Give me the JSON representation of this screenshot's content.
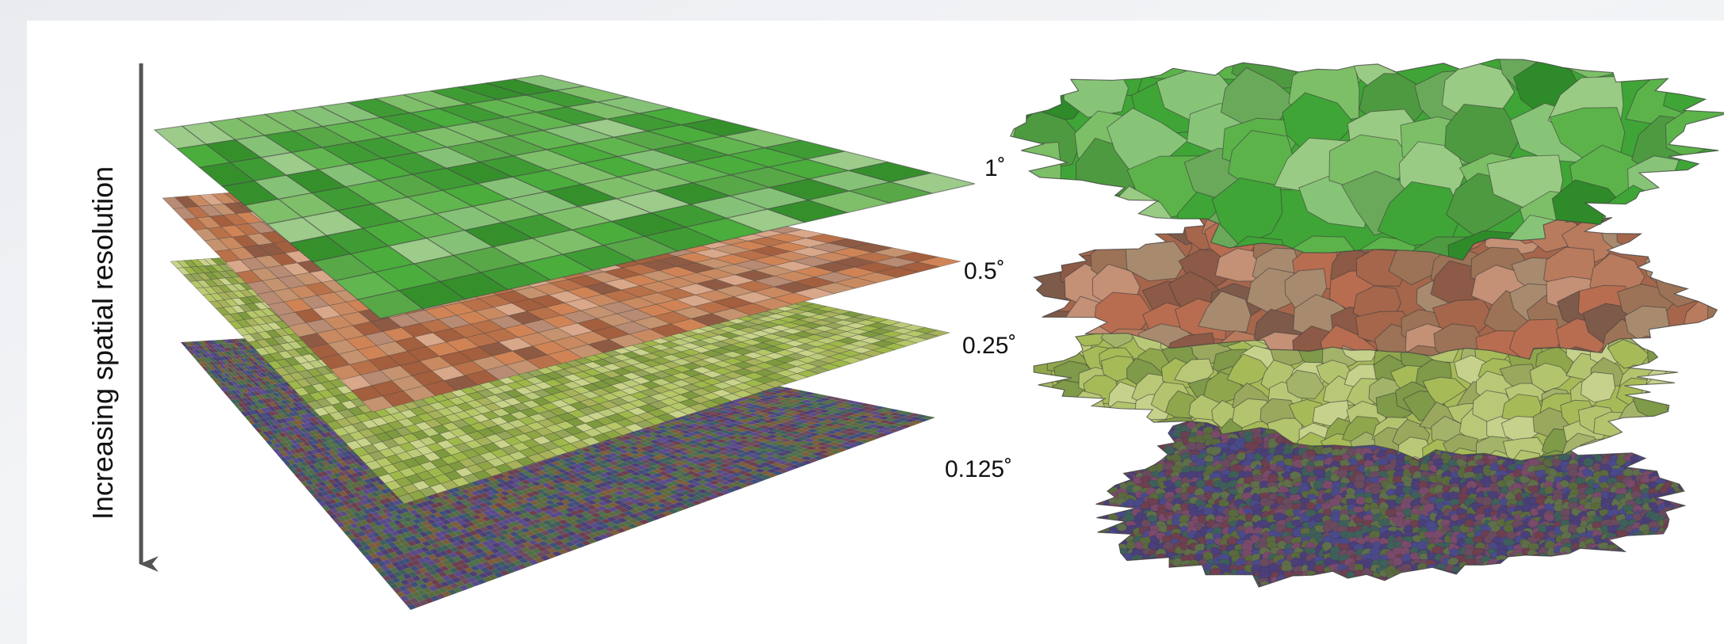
{
  "axis": {
    "label": "Increasing spatial resolution"
  },
  "layers": [
    {
      "label": "1˚",
      "palette": [
        "#3f9c34",
        "#4aad3c",
        "#62b650",
        "#7fbf6a",
        "#9ccb8a",
        "#58a848",
        "#35902c",
        "#86c178"
      ],
      "divisions": 14
    },
    {
      "label": "0.5˚",
      "palette": [
        "#b9714a",
        "#c98a62",
        "#a45f3e",
        "#d9a78a",
        "#c5936f",
        "#8f5a43",
        "#d08456",
        "#b88b74"
      ],
      "divisions": 28
    },
    {
      "label": "0.25˚",
      "palette": [
        "#9fb84a",
        "#b6c768",
        "#8ea644",
        "#c9d38a",
        "#a7b25b",
        "#7e9a3e",
        "#bccb79",
        "#95a65a"
      ],
      "divisions": 50
    },
    {
      "label": "0.125˚",
      "palette": [
        "#4b3f74",
        "#5c6a3f",
        "#6a4a5e",
        "#3f5f5a",
        "#7a5e3a",
        "#5a4a8a",
        "#4f6e4a",
        "#6b3f4f",
        "#3f4f7a"
      ],
      "divisions": 90
    }
  ],
  "regions": {
    "palettes": [
      [
        "#3fa536",
        "#5cb34a",
        "#7dbf67",
        "#9acb84",
        "#4e9a40",
        "#2f8a2a",
        "#88c478",
        "#6aa95a"
      ],
      [
        "#a5664c",
        "#b87b5e",
        "#8c5a46",
        "#c49076",
        "#9c7356",
        "#7e5a4a",
        "#b86d50",
        "#a88a6e"
      ],
      [
        "#a6bb58",
        "#b9c877",
        "#8fa64c",
        "#c6d18b",
        "#9aa85e",
        "#7f9a48",
        "#b3c46e",
        "#a3b46a"
      ],
      [
        "#4a3f78",
        "#6a4a5e",
        "#3f5f5a",
        "#5a6a3e",
        "#7a4a6a",
        "#4a4a8a",
        "#5f6f4a",
        "#6e3f4f"
      ]
    ]
  }
}
